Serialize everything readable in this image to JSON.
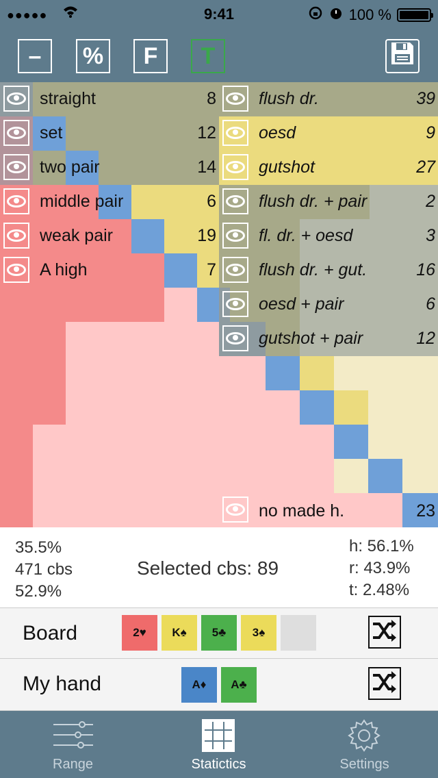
{
  "status": {
    "signal": "●●●●●",
    "time": "9:41",
    "battery": "100 %"
  },
  "toolbar": {
    "minus": "–",
    "percent": "%",
    "f": "F",
    "t": "T"
  },
  "colors": {
    "header": "#5e7b8c",
    "red": "#f48a8a",
    "pink": "#ffc8c8",
    "olive": "#a7a989",
    "yellow": "#ebdb7e",
    "blue": "#6fa0d8",
    "grey": "#b4b8aa",
    "cream": "#f3ebc7",
    "green": "#3aa84a"
  },
  "made_hands": [
    {
      "label": "straight",
      "count": "8"
    },
    {
      "label": "set",
      "count": "12"
    },
    {
      "label": "two pair",
      "count": "14"
    },
    {
      "label": "middle pair",
      "count": "6"
    },
    {
      "label": "weak pair",
      "count": "19"
    },
    {
      "label": "A high",
      "count": "7"
    }
  ],
  "draws": [
    {
      "label": "flush dr.",
      "count": "39"
    },
    {
      "label": "oesd",
      "count": "9"
    },
    {
      "label": "gutshot",
      "count": "27"
    },
    {
      "label": "flush dr. + pair",
      "count": "2"
    },
    {
      "label": "fl. dr. + oesd",
      "count": "3"
    },
    {
      "label": "flush dr. + gut.",
      "count": "16"
    },
    {
      "label": "oesd + pair",
      "count": "6"
    },
    {
      "label": "gutshot + pair",
      "count": "12"
    }
  ],
  "no_made": {
    "label": "no made h.",
    "count": "23"
  },
  "stats": {
    "pct1": "35.5%",
    "cbs": "471 cbs",
    "pct2": "52.9%",
    "selected": "Selected cbs: 89",
    "h": "h: 56.1%",
    "r": "r: 43.9%",
    "t": "t: 2.48%"
  },
  "board": {
    "title": "Board",
    "cards": [
      "2♥",
      "K♠",
      "5♣",
      "3♠",
      ""
    ]
  },
  "hand": {
    "title": "My hand",
    "cards": [
      "A♦",
      "A♣"
    ]
  },
  "tabs": [
    "Range",
    "Statictics",
    "Settings"
  ]
}
